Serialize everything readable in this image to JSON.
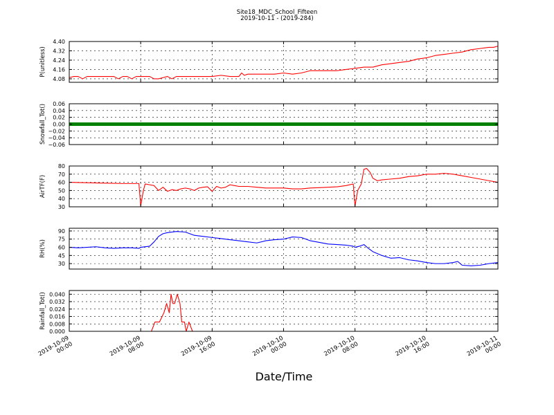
{
  "title": "Site18_MDC_School_Fifteen",
  "subtitle": "2019-10-11 - (2019-284)",
  "xlabel": "Date/Time",
  "colors": {
    "red": "#ff0000",
    "green": "#008000",
    "blue": "#0000ff",
    "axis": "#000000"
  },
  "chart_data": [
    {
      "type": "line",
      "ylabel": "P(unitless)",
      "ylim": [
        4.05,
        4.4
      ],
      "yticks": [
        4.08,
        4.16,
        4.24,
        4.32,
        4.4
      ],
      "ytick_labels": [
        "4.08",
        "4.16",
        "4.24",
        "4.32",
        "4.40"
      ],
      "xlim": [
        0,
        48
      ],
      "grid": true,
      "series": [
        {
          "color": "#ff0000",
          "style": "line",
          "x": [
            0,
            0.5,
            1,
            1.5,
            2,
            2.5,
            3,
            3.5,
            4,
            4.5,
            5,
            5.5,
            6,
            6.5,
            7,
            7.5,
            8,
            8.5,
            9,
            9.5,
            10,
            10.5,
            11,
            11.5,
            12,
            13,
            14,
            15,
            16,
            17,
            18,
            19,
            19.3,
            19.6,
            20,
            21,
            22,
            23,
            24,
            25,
            26,
            27,
            28,
            29,
            30,
            31,
            32,
            33,
            34,
            35,
            36,
            37,
            38,
            39,
            40,
            41,
            42,
            43,
            44,
            45,
            46,
            47,
            47.5,
            48
          ],
          "y": [
            4.09,
            4.1,
            4.1,
            4.08,
            4.1,
            4.1,
            4.1,
            4.1,
            4.1,
            4.1,
            4.1,
            4.08,
            4.1,
            4.1,
            4.08,
            4.1,
            4.1,
            4.1,
            4.1,
            4.08,
            4.08,
            4.09,
            4.1,
            4.08,
            4.1,
            4.1,
            4.1,
            4.1,
            4.1,
            4.11,
            4.1,
            4.1,
            4.13,
            4.11,
            4.12,
            4.12,
            4.12,
            4.12,
            4.13,
            4.12,
            4.13,
            4.15,
            4.15,
            4.15,
            4.15,
            4.16,
            4.17,
            4.18,
            4.18,
            4.2,
            4.21,
            4.22,
            4.23,
            4.25,
            4.26,
            4.28,
            4.29,
            4.3,
            4.31,
            4.33,
            4.34,
            4.35,
            4.35,
            4.36
          ]
        }
      ]
    },
    {
      "type": "line",
      "ylabel": "Snowfall_Tot()",
      "ylim": [
        -0.06,
        0.06
      ],
      "yticks": [
        -0.06,
        -0.04,
        -0.02,
        0.0,
        0.02,
        0.04,
        0.06
      ],
      "ytick_labels": [
        "−0.06",
        "−0.04",
        "−0.02",
        "0.00",
        "0.02",
        "0.04",
        "0.06"
      ],
      "xlim": [
        0,
        48
      ],
      "grid": true,
      "series": [
        {
          "color": "#008000",
          "style": "markers",
          "x": [
            0,
            48
          ],
          "y": [
            0,
            0
          ]
        }
      ]
    },
    {
      "type": "line",
      "ylabel": "AirTF(F)",
      "ylim": [
        30,
        80
      ],
      "yticks": [
        30,
        40,
        50,
        60,
        70,
        80
      ],
      "ytick_labels": [
        "30",
        "40",
        "50",
        "60",
        "70",
        "80"
      ],
      "xlim": [
        0,
        48
      ],
      "grid": true,
      "series": [
        {
          "color": "#ff0000",
          "style": "line",
          "x": [
            0,
            2,
            4,
            6,
            7.8,
            8,
            8.3,
            8.5,
            9,
            9.5,
            10,
            10.5,
            11,
            11.5,
            12,
            12.5,
            13,
            13.5,
            14,
            14.5,
            15,
            15.5,
            16,
            16.5,
            17,
            17.5,
            18,
            18.5,
            19,
            20,
            21,
            22,
            23,
            24,
            25,
            26,
            27,
            28,
            29,
            30,
            31,
            31.8,
            32,
            32.3,
            32.7,
            33,
            33.3,
            33.7,
            34,
            34.5,
            35,
            36,
            37,
            38,
            39,
            40,
            41,
            42,
            43,
            44,
            45,
            46,
            47,
            48
          ],
          "y": [
            60,
            59.5,
            59,
            58.5,
            58.5,
            31,
            50,
            58,
            57,
            56,
            50,
            54,
            49,
            51,
            50,
            52,
            53,
            52,
            50,
            53,
            54,
            54.5,
            49,
            55,
            53,
            54,
            57,
            56,
            55,
            55,
            54,
            53,
            53,
            53,
            52,
            52,
            53,
            53.5,
            54,
            54.5,
            56,
            58,
            31,
            50,
            58,
            76,
            77,
            72,
            65,
            62,
            63,
            64,
            65,
            67,
            68,
            70,
            70,
            71,
            70,
            68,
            66,
            64,
            62,
            60
          ]
        }
      ]
    },
    {
      "type": "line",
      "ylabel": "RH(%)",
      "ylim": [
        20,
        95
      ],
      "yticks": [
        30,
        45,
        60,
        75,
        90
      ],
      "ytick_labels": [
        "30",
        "45",
        "60",
        "75",
        "90"
      ],
      "xlim": [
        0,
        48
      ],
      "grid": true,
      "series": [
        {
          "color": "#0000ff",
          "style": "line",
          "x": [
            0,
            1,
            2,
            3,
            4,
            5,
            6,
            7,
            7.8,
            8,
            9,
            9.5,
            10,
            10.5,
            11,
            12,
            13,
            14,
            15,
            16,
            17,
            18,
            19,
            20,
            21,
            22,
            23,
            24,
            25,
            26,
            27,
            28,
            29,
            30,
            31,
            31.8,
            32,
            32.5,
            33,
            33.5,
            34,
            35,
            36,
            37,
            38,
            39,
            40,
            41,
            42,
            43,
            43.5,
            44,
            45,
            46,
            47,
            48
          ],
          "y": [
            60,
            59,
            60,
            61,
            59,
            58,
            59,
            59,
            58,
            60,
            62,
            70,
            80,
            85,
            87,
            89,
            88,
            82,
            80,
            78,
            76,
            74,
            72,
            70,
            68,
            72,
            74,
            75,
            79,
            78,
            72,
            69,
            66,
            65,
            64,
            62,
            60,
            62,
            65,
            58,
            52,
            45,
            40,
            41,
            37,
            35,
            32,
            30,
            30,
            32,
            34,
            27,
            26,
            27,
            30,
            32
          ]
        }
      ]
    },
    {
      "type": "line",
      "ylabel": "Rainfall_Tot()",
      "ylim": [
        0,
        0.044
      ],
      "yticks": [
        0.0,
        0.008,
        0.016,
        0.024,
        0.032,
        0.04
      ],
      "ytick_labels": [
        "0.000",
        "0.008",
        "0.016",
        "0.024",
        "0.032",
        "0.040"
      ],
      "xlim": [
        0,
        48
      ],
      "grid": true,
      "series": [
        {
          "color": "#ff0000",
          "style": "line",
          "x": [
            0,
            9.2,
            9.6,
            10.1,
            10.6,
            10.9,
            11.2,
            11.4,
            11.6,
            11.8,
            12.1,
            12.4,
            12.6,
            12.9,
            13.1,
            13.4,
            13.8,
            48
          ],
          "y": [
            0,
            0,
            0.01,
            0.01,
            0.02,
            0.03,
            0.02,
            0.04,
            0.03,
            0.03,
            0.04,
            0.03,
            0.01,
            0.01,
            0.0,
            0.01,
            0,
            0
          ]
        }
      ]
    }
  ],
  "x_ticks": [
    {
      "x": 0,
      "line1": "2019-10-09",
      "line2": "00:00"
    },
    {
      "x": 8,
      "line1": "2019-10-09",
      "line2": "08:00"
    },
    {
      "x": 16,
      "line1": "2019-10-09",
      "line2": "16:00"
    },
    {
      "x": 24,
      "line1": "2019-10-10",
      "line2": "00:00"
    },
    {
      "x": 32,
      "line1": "2019-10-10",
      "line2": "08:00"
    },
    {
      "x": 40,
      "line1": "2019-10-10",
      "line2": "16:00"
    },
    {
      "x": 48,
      "line1": "2019-10-11",
      "line2": "00:00"
    }
  ]
}
